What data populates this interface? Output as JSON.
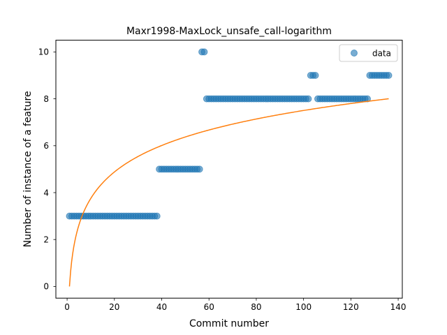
{
  "chart_data": {
    "type": "scatter",
    "title": "Maxr1998-MaxLock_unsafe_call-logarithm",
    "xlabel": "Commit number",
    "ylabel": "Number of instance of a feature",
    "xlim": [
      -4.75,
      141.75
    ],
    "ylim": [
      -0.5,
      10.5
    ],
    "xticks": [
      0,
      20,
      40,
      60,
      80,
      100,
      120,
      140
    ],
    "yticks": [
      0,
      2,
      4,
      6,
      8,
      10
    ],
    "xtick_labels": [
      "0",
      "20",
      "40",
      "60",
      "80",
      "100",
      "120",
      "140"
    ],
    "ytick_labels": [
      "0",
      "2",
      "4",
      "6",
      "8",
      "10"
    ],
    "legend": {
      "position": "top-right",
      "entries": [
        "data"
      ]
    },
    "grid": false,
    "series": [
      {
        "name": "data",
        "kind": "scatter",
        "color": "#1f77b4",
        "points": [
          [
            1,
            3
          ],
          [
            2,
            3
          ],
          [
            3,
            3
          ],
          [
            4,
            3
          ],
          [
            5,
            3
          ],
          [
            6,
            3
          ],
          [
            7,
            3
          ],
          [
            8,
            3
          ],
          [
            9,
            3
          ],
          [
            10,
            3
          ],
          [
            11,
            3
          ],
          [
            12,
            3
          ],
          [
            13,
            3
          ],
          [
            14,
            3
          ],
          [
            15,
            3
          ],
          [
            16,
            3
          ],
          [
            17,
            3
          ],
          [
            18,
            3
          ],
          [
            19,
            3
          ],
          [
            20,
            3
          ],
          [
            21,
            3
          ],
          [
            22,
            3
          ],
          [
            23,
            3
          ],
          [
            24,
            3
          ],
          [
            25,
            3
          ],
          [
            26,
            3
          ],
          [
            27,
            3
          ],
          [
            28,
            3
          ],
          [
            29,
            3
          ],
          [
            30,
            3
          ],
          [
            31,
            3
          ],
          [
            32,
            3
          ],
          [
            33,
            3
          ],
          [
            34,
            3
          ],
          [
            35,
            3
          ],
          [
            36,
            3
          ],
          [
            37,
            3
          ],
          [
            38,
            3
          ],
          [
            39,
            5
          ],
          [
            40,
            5
          ],
          [
            41,
            5
          ],
          [
            42,
            5
          ],
          [
            43,
            5
          ],
          [
            44,
            5
          ],
          [
            45,
            5
          ],
          [
            46,
            5
          ],
          [
            47,
            5
          ],
          [
            48,
            5
          ],
          [
            49,
            5
          ],
          [
            50,
            5
          ],
          [
            51,
            5
          ],
          [
            52,
            5
          ],
          [
            53,
            5
          ],
          [
            54,
            5
          ],
          [
            55,
            5
          ],
          [
            56,
            5
          ],
          [
            57,
            10
          ],
          [
            58,
            10
          ],
          [
            59,
            8
          ],
          [
            60,
            8
          ],
          [
            61,
            8
          ],
          [
            62,
            8
          ],
          [
            63,
            8
          ],
          [
            64,
            8
          ],
          [
            65,
            8
          ],
          [
            66,
            8
          ],
          [
            67,
            8
          ],
          [
            68,
            8
          ],
          [
            69,
            8
          ],
          [
            70,
            8
          ],
          [
            71,
            8
          ],
          [
            72,
            8
          ],
          [
            73,
            8
          ],
          [
            74,
            8
          ],
          [
            75,
            8
          ],
          [
            76,
            8
          ],
          [
            77,
            8
          ],
          [
            78,
            8
          ],
          [
            79,
            8
          ],
          [
            80,
            8
          ],
          [
            81,
            8
          ],
          [
            82,
            8
          ],
          [
            83,
            8
          ],
          [
            84,
            8
          ],
          [
            85,
            8
          ],
          [
            86,
            8
          ],
          [
            87,
            8
          ],
          [
            88,
            8
          ],
          [
            89,
            8
          ],
          [
            90,
            8
          ],
          [
            91,
            8
          ],
          [
            92,
            8
          ],
          [
            93,
            8
          ],
          [
            94,
            8
          ],
          [
            95,
            8
          ],
          [
            96,
            8
          ],
          [
            97,
            8
          ],
          [
            98,
            8
          ],
          [
            99,
            8
          ],
          [
            100,
            8
          ],
          [
            101,
            8
          ],
          [
            102,
            8
          ],
          [
            103,
            9
          ],
          [
            104,
            9
          ],
          [
            105,
            9
          ],
          [
            106,
            8
          ],
          [
            107,
            8
          ],
          [
            108,
            8
          ],
          [
            109,
            8
          ],
          [
            110,
            8
          ],
          [
            111,
            8
          ],
          [
            112,
            8
          ],
          [
            113,
            8
          ],
          [
            114,
            8
          ],
          [
            115,
            8
          ],
          [
            116,
            8
          ],
          [
            117,
            8
          ],
          [
            118,
            8
          ],
          [
            119,
            8
          ],
          [
            120,
            8
          ],
          [
            121,
            8
          ],
          [
            122,
            8
          ],
          [
            123,
            8
          ],
          [
            124,
            8
          ],
          [
            125,
            8
          ],
          [
            126,
            8
          ],
          [
            127,
            8
          ],
          [
            128,
            9
          ],
          [
            129,
            9
          ],
          [
            130,
            9
          ],
          [
            131,
            9
          ],
          [
            132,
            9
          ],
          [
            133,
            9
          ],
          [
            134,
            9
          ],
          [
            135,
            9
          ],
          [
            136,
            9
          ]
        ]
      },
      {
        "kind": "line",
        "color": "#ff7f0e",
        "model": "logarithmic fit",
        "a": 0,
        "b": 1.6292,
        "x_range": [
          1,
          136
        ]
      }
    ]
  }
}
